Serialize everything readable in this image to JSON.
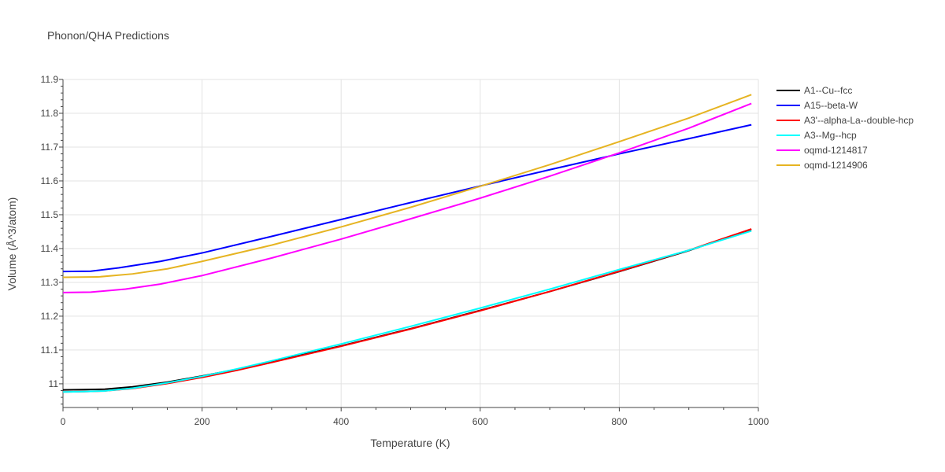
{
  "chart_data": {
    "type": "line",
    "title": "Phonon/QHA Predictions",
    "xlabel": "Temperature (K)",
    "ylabel": "Volume (Å^3/atom)",
    "xlim": [
      0,
      1000
    ],
    "ylim": [
      10.93,
      11.9
    ],
    "x_ticks": [
      0,
      200,
      400,
      600,
      800,
      1000
    ],
    "y_ticks": [
      11,
      11.1,
      11.2,
      11.3,
      11.4,
      11.5,
      11.6,
      11.7,
      11.8,
      11.9
    ],
    "grid": true,
    "legend_position": "top-right",
    "series": [
      {
        "name": "A1--Cu--fcc",
        "color": "#000000",
        "x": [
          0,
          30,
          60,
          100,
          150,
          200,
          250,
          300,
          400,
          500,
          600,
          700,
          800,
          900,
          990
        ],
        "y": [
          10.982,
          10.983,
          10.984,
          10.991,
          11.005,
          11.023,
          11.043,
          11.065,
          11.112,
          11.163,
          11.217,
          11.273,
          11.332,
          11.394,
          11.457
        ]
      },
      {
        "name": "A15--beta-W",
        "color": "#0000ff",
        "x": [
          0,
          40,
          80,
          140,
          200,
          300,
          400,
          500,
          600,
          700,
          800,
          900,
          990
        ],
        "y": [
          11.332,
          11.333,
          11.343,
          11.362,
          11.387,
          11.436,
          11.486,
          11.536,
          11.585,
          11.633,
          11.68,
          11.725,
          11.766
        ]
      },
      {
        "name": "A3'--alpha-La--double-hcp",
        "color": "#ff0000",
        "x": [
          0,
          30,
          60,
          100,
          150,
          200,
          250,
          300,
          400,
          500,
          600,
          700,
          800,
          900,
          990
        ],
        "y": [
          10.976,
          10.977,
          10.979,
          10.986,
          11.001,
          11.019,
          11.04,
          11.063,
          11.111,
          11.162,
          11.216,
          11.273,
          11.333,
          11.395,
          11.458
        ]
      },
      {
        "name": "A3--Mg--hcp",
        "color": "#00ffff",
        "x": [
          0,
          30,
          60,
          100,
          150,
          200,
          250,
          300,
          400,
          500,
          600,
          700,
          800,
          900,
          990
        ],
        "y": [
          10.976,
          10.977,
          10.979,
          10.987,
          11.003,
          11.022,
          11.044,
          11.068,
          11.118,
          11.17,
          11.224,
          11.28,
          11.338,
          11.395,
          11.452
        ]
      },
      {
        "name": "oqmd-1214817",
        "color": "#ff00ff",
        "x": [
          0,
          40,
          90,
          140,
          200,
          300,
          400,
          500,
          600,
          700,
          800,
          900,
          990
        ],
        "y": [
          11.27,
          11.271,
          11.28,
          11.295,
          11.32,
          11.372,
          11.428,
          11.488,
          11.549,
          11.614,
          11.683,
          11.756,
          11.829
        ]
      },
      {
        "name": "oqmd-1214906",
        "color": "#e6b422",
        "x": [
          0,
          50,
          100,
          150,
          200,
          300,
          400,
          500,
          600,
          700,
          800,
          900,
          990
        ],
        "y": [
          11.315,
          11.316,
          11.325,
          11.34,
          11.362,
          11.41,
          11.464,
          11.522,
          11.584,
          11.648,
          11.716,
          11.786,
          11.855
        ]
      }
    ]
  }
}
